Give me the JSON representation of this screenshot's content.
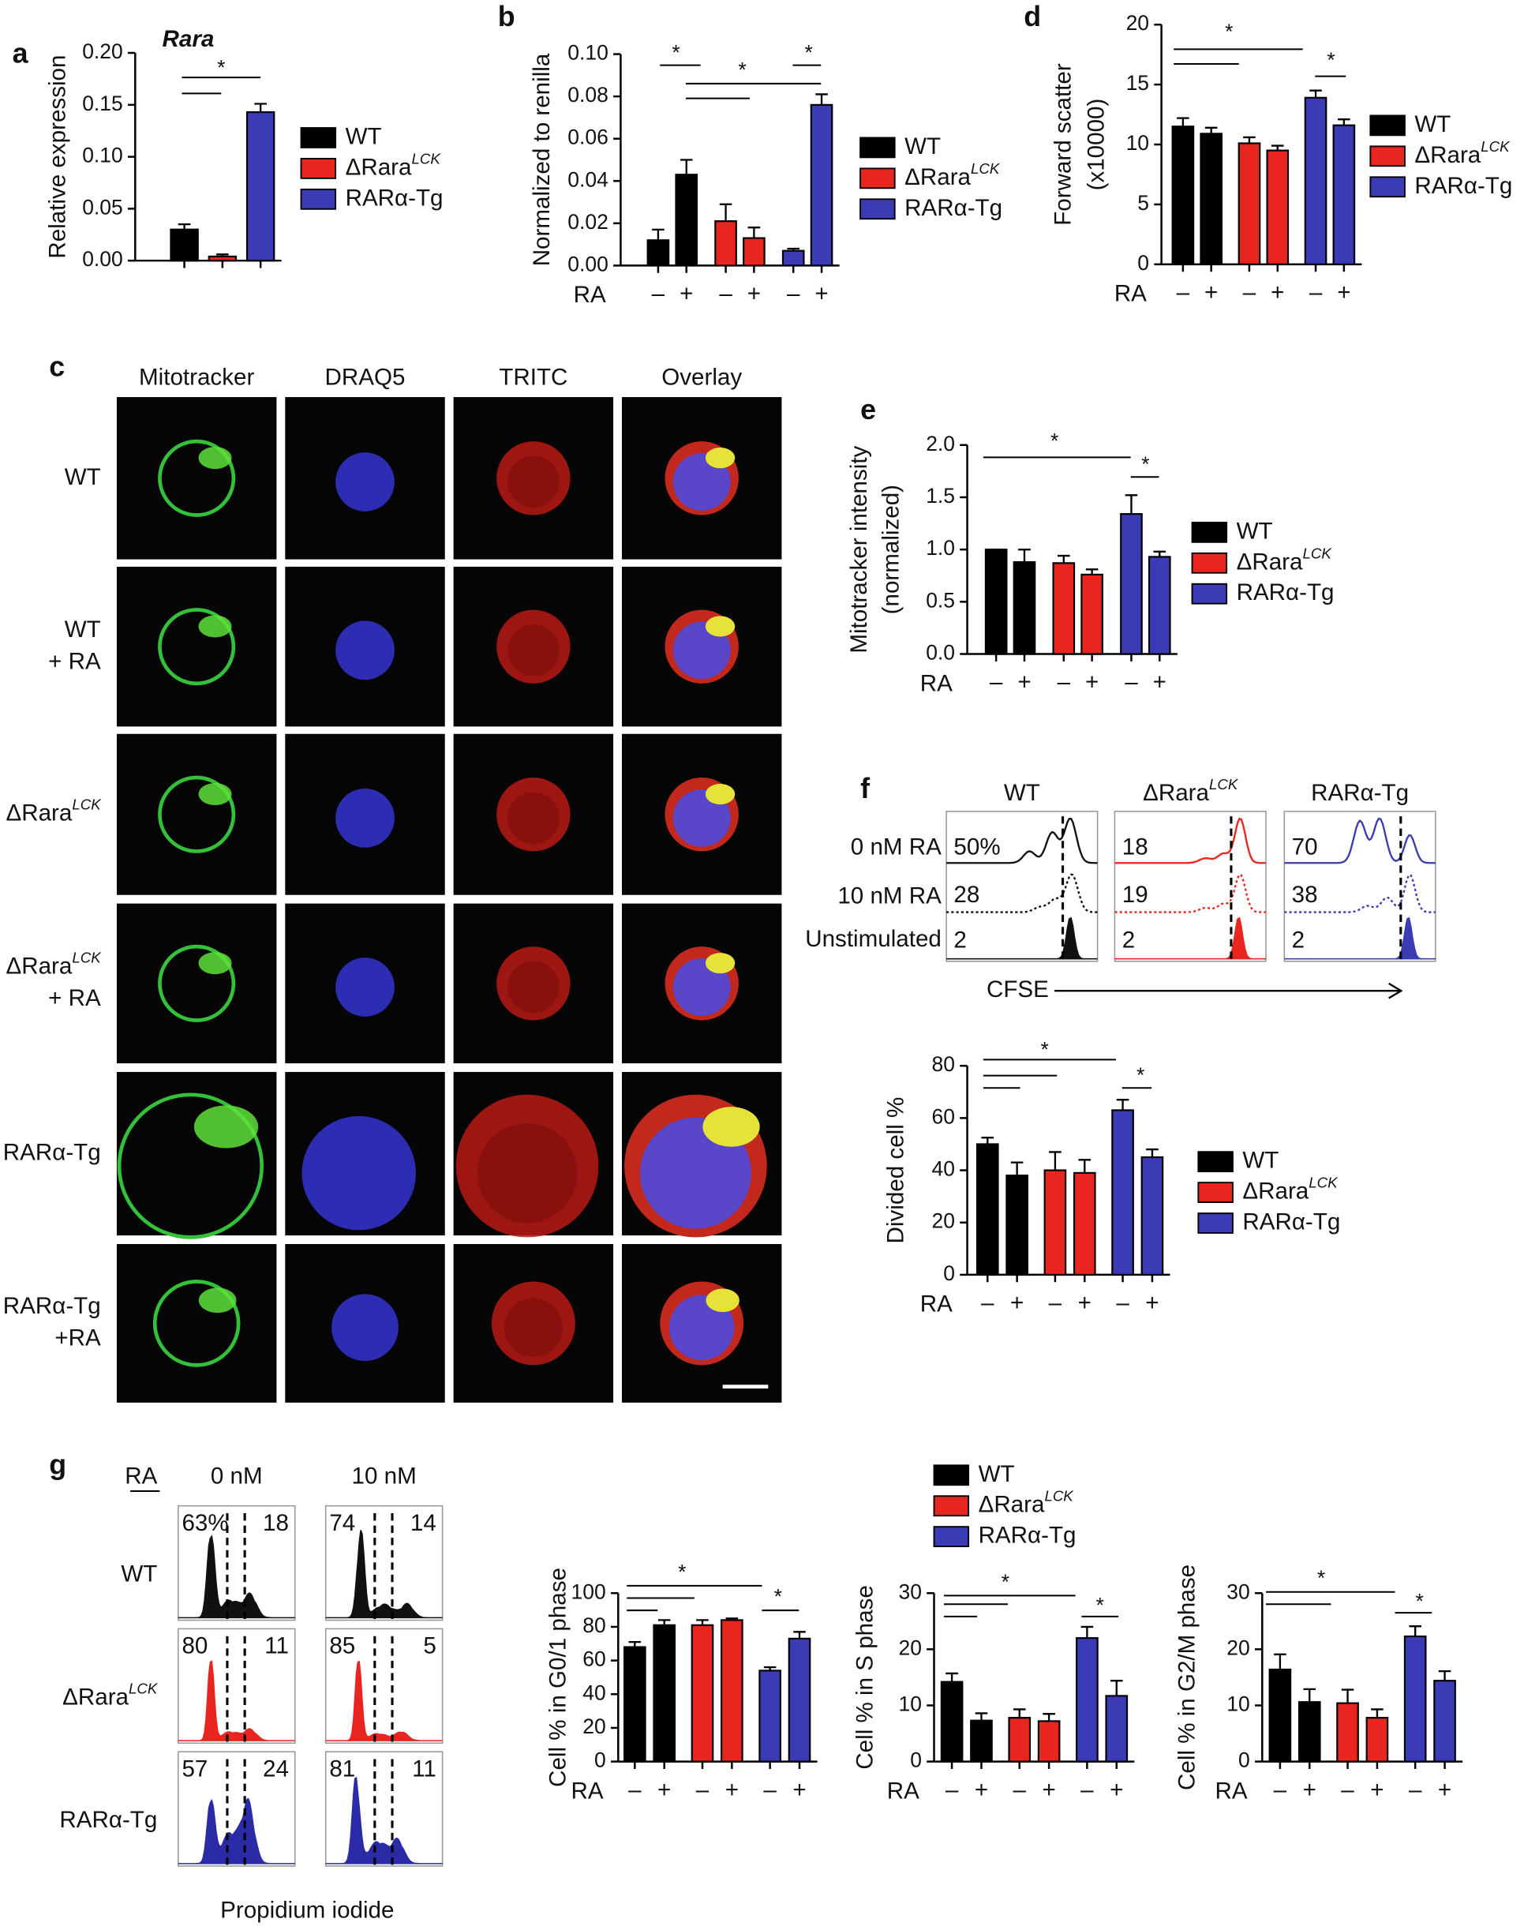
{
  "panels": [
    "a",
    "b",
    "c",
    "d",
    "e",
    "f",
    "g"
  ],
  "chart_data": [
    {
      "type": "bar",
      "title": "Rara",
      "ylabel": [
        "Relative expression"
      ],
      "series": [
        {
          "name": "WT",
          "color": "#000000",
          "values": [
            0.03
          ],
          "errors": [
            0.005
          ]
        },
        {
          "name": "ΔRara",
          "name_sup": "LCK",
          "color": "#e8251f",
          "values": [
            0.004
          ],
          "errors": [
            0.002
          ]
        },
        {
          "name": "RARα-Tg",
          "color": "#3b3bb5",
          "values": [
            0.143
          ],
          "errors": [
            0.008
          ]
        }
      ],
      "ylim": [
        0,
        0.2
      ],
      "yticks": [
        {
          "value": 0,
          "label": "0.00"
        },
        {
          "value": 0.05,
          "label": "0.05"
        },
        {
          "value": 0.1,
          "label": "0.10"
        },
        {
          "value": 0.15,
          "label": "0.15"
        },
        {
          "value": 0.2,
          "label": "0.20"
        }
      ],
      "significance": [
        "*"
      ],
      "legend": true
    },
    {
      "type": "bar",
      "ylabel": [
        "Normalized to renilla"
      ],
      "xlabel": "RA",
      "categories": [
        "–",
        "+"
      ],
      "series": [
        {
          "name": "WT",
          "color": "#000000",
          "values": [
            0.012,
            0.043
          ],
          "errors": [
            0.005,
            0.007
          ]
        },
        {
          "name": "ΔRara",
          "name_sup": "LCK",
          "color": "#e8251f",
          "values": [
            0.021,
            0.013
          ],
          "errors": [
            0.008,
            0.005
          ]
        },
        {
          "name": "RARα-Tg",
          "color": "#3b3bb5",
          "values": [
            0.007,
            0.076
          ],
          "errors": [
            0.001,
            0.005
          ]
        }
      ],
      "ylim": [
        0,
        0.1
      ],
      "yticks": [
        {
          "value": 0,
          "label": "0.00"
        },
        {
          "value": 0.02,
          "label": "0.02"
        },
        {
          "value": 0.04,
          "label": "0.04"
        },
        {
          "value": 0.06,
          "label": "0.06"
        },
        {
          "value": 0.08,
          "label": "0.08"
        },
        {
          "value": 0.1,
          "label": "0.10"
        }
      ],
      "significance": [
        "*",
        "*",
        "*"
      ],
      "legend": true
    },
    {
      "type": "bar",
      "ylabel": [
        "Forward scatter",
        "(x10000)"
      ],
      "xlabel": "RA",
      "categories": [
        "–",
        "+"
      ],
      "series": [
        {
          "name": "WT",
          "color": "#000000",
          "values": [
            11.5,
            10.9
          ],
          "errors": [
            0.7,
            0.5
          ]
        },
        {
          "name": "ΔRara",
          "name_sup": "LCK",
          "color": "#e8251f",
          "values": [
            10.1,
            9.5
          ],
          "errors": [
            0.5,
            0.4
          ]
        },
        {
          "name": "RARα-Tg",
          "color": "#3b3bb5",
          "values": [
            13.9,
            11.6
          ],
          "errors": [
            0.6,
            0.5
          ]
        }
      ],
      "ylim": [
        0,
        20
      ],
      "yticks": [
        0,
        5,
        10,
        15,
        20
      ],
      "significance": [
        "*",
        "*"
      ],
      "legend": true
    },
    {
      "type": "bar",
      "ylabel": [
        "Mitotracker intensity",
        "(normalized)"
      ],
      "xlabel": "RA",
      "categories": [
        "–",
        "+"
      ],
      "series": [
        {
          "name": "WT",
          "color": "#000000",
          "values": [
            1.0,
            0.88
          ],
          "errors": [
            0,
            0.12
          ]
        },
        {
          "name": "ΔRara",
          "name_sup": "LCK",
          "color": "#e8251f",
          "values": [
            0.87,
            0.76
          ],
          "errors": [
            0.07,
            0.05
          ]
        },
        {
          "name": "RARα-Tg",
          "color": "#3b3bb5",
          "values": [
            1.34,
            0.93
          ],
          "errors": [
            0.18,
            0.05
          ]
        }
      ],
      "ylim": [
        0,
        2
      ],
      "yticks": [
        {
          "value": 0,
          "label": "0.0"
        },
        {
          "value": 0.5,
          "label": "0.5"
        },
        {
          "value": 1,
          "label": "1.0"
        },
        {
          "value": 1.5,
          "label": "1.5"
        },
        {
          "value": 2,
          "label": "2.0"
        }
      ],
      "significance": [
        "*",
        "*"
      ],
      "legend": true
    },
    {
      "type": "bar",
      "ylabel": [
        "Divided cell %"
      ],
      "xlabel": "RA",
      "categories": [
        "–",
        "+"
      ],
      "series": [
        {
          "name": "WT",
          "color": "#000000",
          "values": [
            50,
            38
          ],
          "errors": [
            2.5,
            5
          ]
        },
        {
          "name": "ΔRara",
          "name_sup": "LCK",
          "color": "#e8251f",
          "values": [
            40,
            39
          ],
          "errors": [
            7,
            5
          ]
        },
        {
          "name": "RARα-Tg",
          "color": "#3b3bb5",
          "values": [
            63,
            45
          ],
          "errors": [
            4,
            3
          ]
        }
      ],
      "ylim": [
        0,
        80
      ],
      "yticks": [
        0,
        20,
        40,
        60,
        80
      ],
      "significance": [
        "*",
        "*"
      ],
      "legend": true
    },
    {
      "type": "bar",
      "ylabel": [
        "Cell % in G0/1 phase"
      ],
      "xlabel": "RA",
      "categories": [
        "–",
        "+"
      ],
      "series": [
        {
          "name": "WT",
          "color": "#000000",
          "values": [
            68,
            81
          ],
          "errors": [
            3,
            3
          ]
        },
        {
          "name": "ΔRara",
          "name_sup": "LCK",
          "color": "#e8251f",
          "values": [
            81,
            84
          ],
          "errors": [
            3,
            1
          ]
        },
        {
          "name": "RARα-Tg",
          "color": "#3b3bb5",
          "values": [
            54,
            73
          ],
          "errors": [
            2,
            4
          ]
        }
      ],
      "ylim": [
        0,
        100
      ],
      "yticks": [
        0,
        20,
        40,
        60,
        80,
        100
      ],
      "significance": [
        "*",
        "*"
      ],
      "legend": true
    },
    {
      "type": "bar",
      "ylabel": [
        "Cell % in S phase"
      ],
      "xlabel": "RA",
      "categories": [
        "–",
        "+"
      ],
      "series": [
        {
          "name": "WT",
          "color": "#000000",
          "values": [
            14.2,
            7.3
          ],
          "errors": [
            1.5,
            1.3
          ]
        },
        {
          "name": "ΔRara",
          "name_sup": "LCK",
          "color": "#e8251f",
          "values": [
            7.8,
            7.2
          ],
          "errors": [
            1.5,
            1.3
          ]
        },
        {
          "name": "RARα-Tg",
          "color": "#3b3bb5",
          "values": [
            22,
            11.7
          ],
          "errors": [
            2,
            2.7
          ]
        }
      ],
      "ylim": [
        0,
        30
      ],
      "yticks": [
        0,
        10,
        20,
        30
      ],
      "significance": [
        "*",
        "*"
      ],
      "legend": false
    },
    {
      "type": "bar",
      "ylabel": [
        "Cell % in G2/M phase"
      ],
      "xlabel": "RA",
      "categories": [
        "–",
        "+"
      ],
      "series": [
        {
          "name": "WT",
          "color": "#000000",
          "values": [
            16.4,
            10.6
          ],
          "errors": [
            2.7,
            2.3
          ]
        },
        {
          "name": "ΔRara",
          "name_sup": "LCK",
          "color": "#e8251f",
          "values": [
            10.4,
            7.8
          ],
          "errors": [
            2.4,
            1.5
          ]
        },
        {
          "name": "RARα-Tg",
          "color": "#3b3bb5",
          "values": [
            22.3,
            14.4
          ],
          "errors": [
            1.8,
            1.7
          ]
        }
      ],
      "ylim": [
        0,
        30
      ],
      "yticks": [
        0,
        10,
        20,
        30
      ],
      "significance": [
        "*",
        "*"
      ],
      "legend": false
    }
  ],
  "panel_c": {
    "columns": [
      "Mitotracker",
      "DRAQ5",
      "TRITC",
      "Overlay"
    ],
    "rows": [
      {
        "label": [
          "WT"
        ]
      },
      {
        "label": [
          "WT",
          "+ RA"
        ]
      },
      {
        "label": [
          "ΔRara"
        ],
        "sup": "LCK"
      },
      {
        "label": [
          "ΔRara",
          "+ RA"
        ],
        "sup": "LCK"
      },
      {
        "label": [
          "RARα-Tg"
        ]
      },
      {
        "label": [
          "RARα-Tg",
          "+RA"
        ]
      }
    ]
  },
  "panel_f_hist": {
    "columns": [
      {
        "title": "WT"
      },
      {
        "title": "ΔRara",
        "sup": "LCK"
      },
      {
        "title": "RARα-Tg"
      }
    ],
    "rows": [
      "0 nM RA",
      "10 nM RA",
      "Unstimulated"
    ],
    "percentages": [
      [
        "50%",
        "28",
        "2"
      ],
      [
        "18",
        "19",
        "2"
      ],
      [
        "70",
        "38",
        "2"
      ]
    ],
    "xlabel": "CFSE"
  },
  "panel_g_hist": {
    "row_header": "RA",
    "columns": [
      "0 nM",
      "10 nM"
    ],
    "rows": [
      {
        "label": "WT"
      },
      {
        "label": "ΔRara",
        "sup": "LCK"
      },
      {
        "label": "RARα-Tg"
      }
    ],
    "numbers": [
      [
        [
          "63%",
          "18"
        ],
        [
          "74",
          "14"
        ]
      ],
      [
        [
          "80",
          "11"
        ],
        [
          "85",
          "5"
        ]
      ],
      [
        [
          "57",
          "24"
        ],
        [
          "81",
          "11"
        ]
      ]
    ],
    "xlabel": "Propidium iodide"
  }
}
